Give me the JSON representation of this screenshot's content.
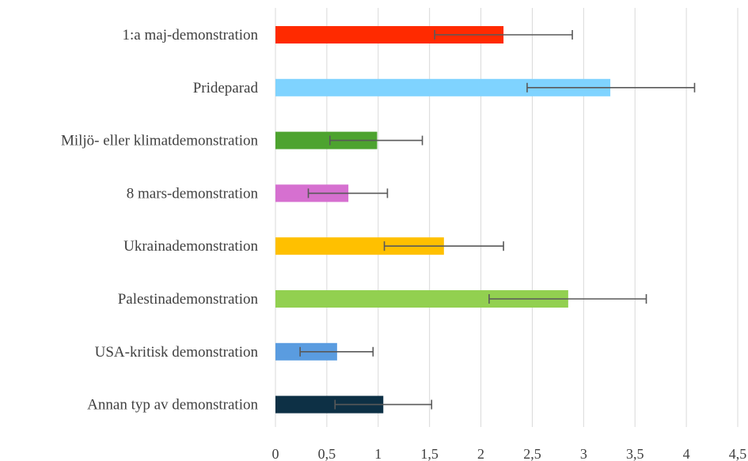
{
  "chart_data": {
    "type": "bar",
    "orientation": "horizontal",
    "title": "",
    "xlabel": "",
    "ylabel": "",
    "xlim": [
      0,
      4.5
    ],
    "grid": "vertical",
    "legend": "none",
    "x_ticks": [
      "0",
      "0,5",
      "1",
      "1,5",
      "2",
      "2,5",
      "3",
      "3,5",
      "4",
      "4,5"
    ],
    "x_tick_values": [
      0,
      0.5,
      1,
      1.5,
      2,
      2.5,
      3,
      3.5,
      4,
      4.5
    ],
    "categories": [
      "1:a maj-demonstration",
      "Prideparad",
      "Miljö- eller klimatdemonstration",
      "8 mars-demonstration",
      "Ukrainademonstration",
      "Palestinademonstration",
      "USA-kritisk demonstration",
      "Annan typ av demonstration"
    ],
    "values": [
      2.22,
      3.26,
      0.99,
      0.71,
      1.64,
      2.85,
      0.6,
      1.05
    ],
    "error_low": [
      1.55,
      2.45,
      0.53,
      0.32,
      1.06,
      2.08,
      0.24,
      0.58
    ],
    "error_high": [
      2.89,
      4.08,
      1.43,
      1.09,
      2.22,
      3.61,
      0.95,
      1.52
    ],
    "colors": [
      "#ff2a00",
      "#7fd3ff",
      "#4da32f",
      "#d670d0",
      "#ffc000",
      "#92d050",
      "#5a9ce0",
      "#0d3045"
    ]
  }
}
